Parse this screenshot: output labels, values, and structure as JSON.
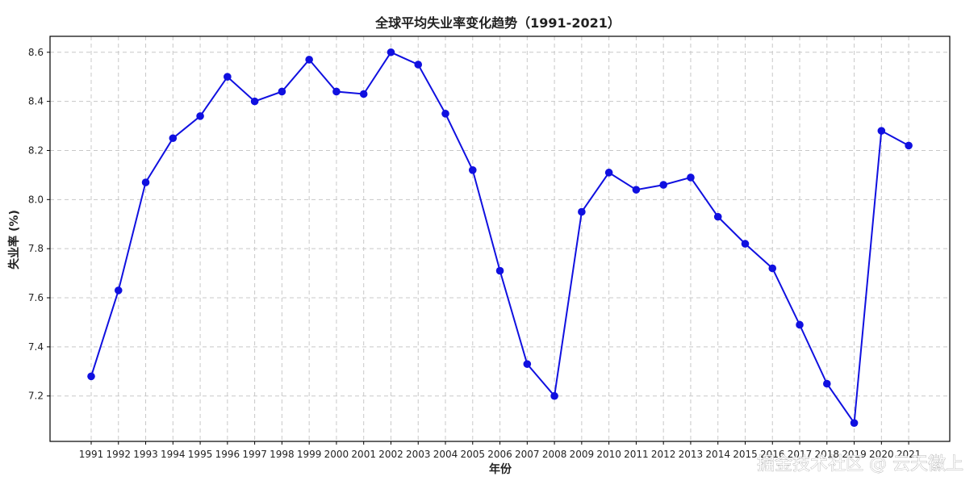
{
  "chart_data": {
    "type": "line",
    "title": "全球平均失业率变化趋势（1991-2021）",
    "xlabel": "年份",
    "ylabel": "失业率 (%)",
    "x": [
      "1991",
      "1992",
      "1993",
      "1994",
      "1995",
      "1996",
      "1997",
      "1998",
      "1999",
      "2000",
      "2001",
      "2002",
      "2003",
      "2004",
      "2005",
      "2006",
      "2007",
      "2008",
      "2009",
      "2010",
      "2011",
      "2012",
      "2013",
      "2014",
      "2015",
      "2016",
      "2017",
      "2018",
      "2019",
      "2020",
      "2021"
    ],
    "y_ticks": [
      "7.2",
      "7.4",
      "7.6",
      "7.8",
      "8.0",
      "8.2",
      "8.4",
      "8.6"
    ],
    "ylim": [
      7.015,
      8.665
    ],
    "grid": true,
    "series": [
      {
        "values": [
          7.28,
          7.63,
          8.07,
          8.25,
          8.34,
          8.5,
          8.4,
          8.44,
          8.57,
          8.44,
          8.43,
          8.6,
          8.55,
          8.35,
          8.12,
          7.71,
          7.33,
          7.2,
          7.95,
          8.11,
          8.04,
          8.06,
          8.09,
          7.93,
          7.82,
          7.72,
          7.49,
          7.25,
          7.09,
          8.28,
          8.22
        ],
        "color": "#1010e0"
      }
    ]
  },
  "watermark": "掘金技术社区 @ 云天徽上"
}
